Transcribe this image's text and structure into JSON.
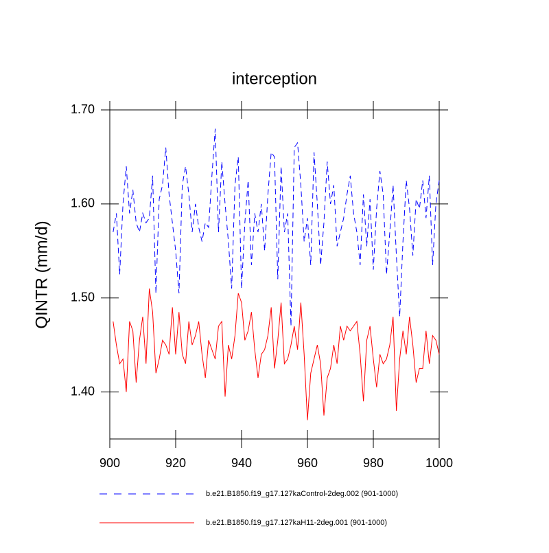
{
  "chart_data": {
    "type": "line",
    "title": "interception",
    "y_label": "QINTR  (mm/d)",
    "x": [
      901,
      902,
      903,
      904,
      905,
      906,
      907,
      908,
      909,
      910,
      911,
      912,
      913,
      914,
      915,
      916,
      917,
      918,
      919,
      920,
      921,
      922,
      923,
      924,
      925,
      926,
      927,
      928,
      929,
      930,
      931,
      932,
      933,
      934,
      935,
      936,
      937,
      938,
      939,
      940,
      941,
      942,
      943,
      944,
      945,
      946,
      947,
      948,
      949,
      950,
      951,
      952,
      953,
      954,
      955,
      956,
      957,
      958,
      959,
      960,
      961,
      962,
      963,
      964,
      965,
      966,
      967,
      968,
      969,
      970,
      971,
      972,
      973,
      974,
      975,
      976,
      977,
      978,
      979,
      980,
      981,
      982,
      983,
      984,
      985,
      986,
      987,
      988,
      989,
      990,
      991,
      992,
      993,
      994,
      995,
      996,
      997,
      998,
      999,
      1000
    ],
    "series": [
      {
        "name": "b.e21.B1850.f19_g17.127kaControl-2deg.002 (901-1000)",
        "color": "#0000ff",
        "dash": true,
        "values": [
          1.57,
          1.59,
          1.525,
          1.6,
          1.64,
          1.59,
          1.615,
          1.58,
          1.57,
          1.59,
          1.58,
          1.585,
          1.63,
          1.505,
          1.605,
          1.62,
          1.66,
          1.61,
          1.58,
          1.55,
          1.505,
          1.62,
          1.64,
          1.61,
          1.57,
          1.6,
          1.575,
          1.56,
          1.58,
          1.575,
          1.63,
          1.68,
          1.57,
          1.645,
          1.6,
          1.56,
          1.51,
          1.62,
          1.65,
          1.51,
          1.58,
          1.625,
          1.535,
          1.59,
          1.57,
          1.6,
          1.55,
          1.61,
          1.655,
          1.65,
          1.52,
          1.64,
          1.57,
          1.59,
          1.47,
          1.66,
          1.665,
          1.62,
          1.56,
          1.585,
          1.535,
          1.655,
          1.6,
          1.535,
          1.58,
          1.645,
          1.6,
          1.62,
          1.555,
          1.57,
          1.585,
          1.61,
          1.63,
          1.59,
          1.57,
          1.535,
          1.61,
          1.555,
          1.605,
          1.53,
          1.595,
          1.635,
          1.61,
          1.525,
          1.57,
          1.62,
          1.545,
          1.48,
          1.56,
          1.625,
          1.595,
          1.545,
          1.605,
          1.595,
          1.625,
          1.585,
          1.63,
          1.535,
          1.6,
          1.625
        ]
      },
      {
        "name": "b.e21.B1850.f19_g17.127kaH11-2deg.001 (901-1000)",
        "color": "#ff0000",
        "dash": false,
        "values": [
          1.475,
          1.45,
          1.43,
          1.435,
          1.4,
          1.475,
          1.465,
          1.41,
          1.455,
          1.48,
          1.43,
          1.51,
          1.485,
          1.42,
          1.435,
          1.455,
          1.45,
          1.44,
          1.49,
          1.44,
          1.485,
          1.44,
          1.43,
          1.475,
          1.45,
          1.46,
          1.475,
          1.44,
          1.415,
          1.455,
          1.445,
          1.435,
          1.47,
          1.475,
          1.395,
          1.45,
          1.435,
          1.46,
          1.505,
          1.495,
          1.455,
          1.465,
          1.485,
          1.445,
          1.415,
          1.44,
          1.445,
          1.46,
          1.49,
          1.425,
          1.455,
          1.495,
          1.43,
          1.435,
          1.45,
          1.47,
          1.445,
          1.495,
          1.44,
          1.37,
          1.42,
          1.435,
          1.45,
          1.43,
          1.375,
          1.415,
          1.425,
          1.45,
          1.43,
          1.47,
          1.455,
          1.47,
          1.465,
          1.47,
          1.475,
          1.44,
          1.39,
          1.455,
          1.47,
          1.435,
          1.405,
          1.44,
          1.43,
          1.435,
          1.45,
          1.48,
          1.38,
          1.435,
          1.465,
          1.44,
          1.48,
          1.45,
          1.41,
          1.425,
          1.425,
          1.465,
          1.43,
          1.46,
          1.455,
          1.44
        ]
      }
    ],
    "xlim": [
      900,
      1000
    ],
    "xticks": [
      900,
      920,
      940,
      960,
      980,
      1000
    ],
    "ylim": [
      1.35,
      1.7
    ],
    "yticks": [
      {
        "value": 1.4,
        "label": "1.40"
      },
      {
        "value": 1.5,
        "label": "1.50"
      },
      {
        "value": 1.6,
        "label": "1.60"
      },
      {
        "value": 1.7,
        "label": "1.70"
      }
    ]
  }
}
